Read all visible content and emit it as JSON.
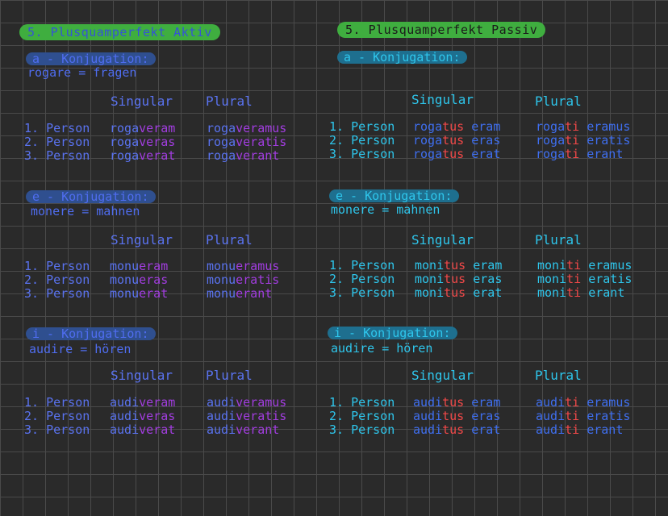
{
  "left": {
    "heading": "5. Plusquamperfekt Aktiv",
    "sections": [
      {
        "title": "a - Konjugation:",
        "subtitle": "rogare = fragen",
        "col_singular": "Singular",
        "col_plural": "Plural",
        "rows": [
          {
            "person": "1. Person",
            "sg_stem": "roga",
            "sg_end": "veram",
            "pl_stem": "roga",
            "pl_end": "veramus"
          },
          {
            "person": "2. Person",
            "sg_stem": "roga",
            "sg_end": "veras",
            "pl_stem": "roga",
            "pl_end": "veratis"
          },
          {
            "person": "3. Person",
            "sg_stem": "roga",
            "sg_end": "verat",
            "pl_stem": "roga",
            "pl_end": "verant"
          }
        ]
      },
      {
        "title": "e - Konjugation:",
        "subtitle": "monere = mahnen",
        "col_singular": "Singular",
        "col_plural": "Plural",
        "rows": [
          {
            "person": "1. Person",
            "sg_stem": "monu",
            "sg_end": "eram",
            "pl_stem": "monu",
            "pl_end": "eramus"
          },
          {
            "person": "2. Person",
            "sg_stem": "monu",
            "sg_end": "eras",
            "pl_stem": "monu",
            "pl_end": "eratis"
          },
          {
            "person": "3. Person",
            "sg_stem": "monu",
            "sg_end": "erat",
            "pl_stem": "monu",
            "pl_end": "erant"
          }
        ]
      },
      {
        "title": "i - Konjugation:",
        "subtitle": "audire = hören",
        "col_singular": "Singular",
        "col_plural": "Plural",
        "rows": [
          {
            "person": "1. Person",
            "sg_stem": "audi",
            "sg_end": "veram",
            "pl_stem": "audi",
            "pl_end": "veramus"
          },
          {
            "person": "2. Person",
            "sg_stem": "audi",
            "sg_end": "veras",
            "pl_stem": "audi",
            "pl_end": "veratis"
          },
          {
            "person": "3. Person",
            "sg_stem": "audi",
            "sg_end": "verat",
            "pl_stem": "audi",
            "pl_end": "verant"
          }
        ]
      }
    ]
  },
  "right": {
    "heading": "5. Plusquamperfekt Passiv",
    "sections": [
      {
        "title": "a - Konjugation:",
        "subtitle": "",
        "col_singular": "Singular",
        "col_plural": "Plural",
        "rows": [
          {
            "person": "1. Person",
            "sg_stem": "roga",
            "sg_mid": "tus",
            "sg_end": "eram",
            "pl_stem": "roga",
            "pl_mid": "ti",
            "pl_end": "eramus"
          },
          {
            "person": "2. Person",
            "sg_stem": "roga",
            "sg_mid": "tus",
            "sg_end": "eras",
            "pl_stem": "roga",
            "pl_mid": "ti",
            "pl_end": "eratis"
          },
          {
            "person": "3. Person",
            "sg_stem": "roga",
            "sg_mid": "tus",
            "sg_end": "erat",
            "pl_stem": "roga",
            "pl_mid": "ti",
            "pl_end": "erant"
          }
        ]
      },
      {
        "title": "e - Konjugation:",
        "subtitle": "monere = mahnen",
        "col_singular": "Singular",
        "col_plural": "Plural",
        "rows": [
          {
            "person": "1. Person",
            "sg_stem": "moni",
            "sg_mid": "tus",
            "sg_end": "eram",
            "pl_stem": "moni",
            "pl_mid": "ti",
            "pl_end": "eramus"
          },
          {
            "person": "2. Person",
            "sg_stem": "moni",
            "sg_mid": "tus",
            "sg_end": "eras",
            "pl_stem": "moni",
            "pl_mid": "ti",
            "pl_end": "eratis"
          },
          {
            "person": "3. Person",
            "sg_stem": "moni",
            "sg_mid": "tus",
            "sg_end": "erat",
            "pl_stem": "moni",
            "pl_mid": "ti",
            "pl_end": "erant"
          }
        ]
      },
      {
        "title": "i - Konjugation:",
        "subtitle": "audire = hören",
        "col_singular": "Singular",
        "col_plural": "Plural",
        "rows": [
          {
            "person": "1. Person",
            "sg_stem": "audi",
            "sg_mid": "tus",
            "sg_end": "eram",
            "pl_stem": "audi",
            "pl_mid": "ti",
            "pl_end": "eramus"
          },
          {
            "person": "2. Person",
            "sg_stem": "audi",
            "sg_mid": "tus",
            "sg_end": "eras",
            "pl_stem": "audi",
            "pl_mid": "ti",
            "pl_end": "eratis"
          },
          {
            "person": "3. Person",
            "sg_stem": "audi",
            "sg_mid": "tus",
            "sg_end": "erat",
            "pl_stem": "audi",
            "pl_mid": "ti",
            "pl_end": "erant"
          }
        ]
      }
    ]
  },
  "colors": {
    "background": "#2a2a2a",
    "grid": "#4a4a4a",
    "heading_highlight": "#3fae3f",
    "left_blue": "#5a73f0",
    "left_ending_purple": "#a23de0",
    "right_cyan": "#2ec6ec",
    "right_red": "#f04848"
  }
}
